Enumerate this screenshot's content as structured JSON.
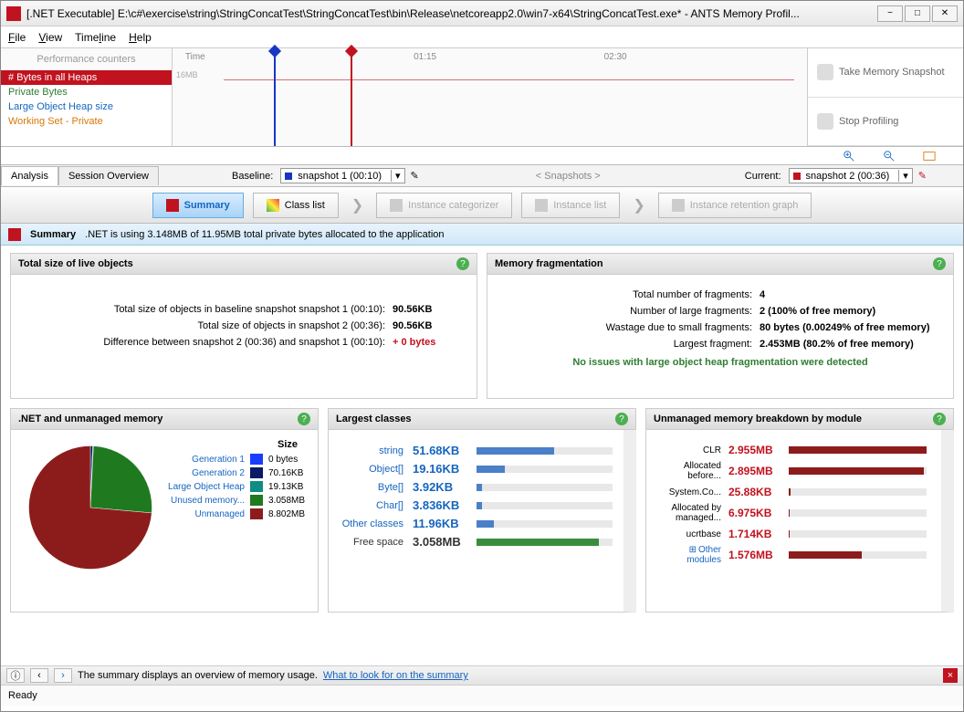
{
  "window": {
    "title": "[.NET Executable] E:\\c#\\exercise\\string\\StringConcatTest\\StringConcatTest\\bin\\Release\\netcoreapp2.0\\win7-x64\\StringConcatTest.exe* - ANTS Memory Profil..."
  },
  "menu": {
    "file": "File",
    "view": "View",
    "timeline": "Timeline",
    "help": "Help"
  },
  "perf_counters": {
    "header": "Performance counters",
    "items": [
      "# Bytes in all Heaps",
      "Private Bytes",
      "Large Object Heap size",
      "Working Set - Private"
    ]
  },
  "timeline": {
    "label_time": "Time",
    "ticks": [
      "01:15",
      "02:30"
    ],
    "tick_positions_pct": [
      38,
      68
    ],
    "ylabel": "16MB",
    "markers": [
      {
        "pos_pct": 16,
        "color": "#1636c6"
      },
      {
        "pos_pct": 28,
        "color": "#c1121f"
      }
    ]
  },
  "actions": {
    "snapshot": "Take Memory Snapshot",
    "stop": "Stop Profiling"
  },
  "snapshots": {
    "tabs": [
      "Analysis",
      "Session Overview"
    ],
    "baseline_lbl": "Baseline:",
    "baseline_val": "snapshot 1 (00:10)",
    "baseline_color": "#1636c6",
    "center": "< Snapshots >",
    "current_lbl": "Current:",
    "current_val": "snapshot 2 (00:36)",
    "current_color": "#c1121f"
  },
  "toolbar": {
    "summary": "Summary",
    "class_list": "Class list",
    "instance_cat": "Instance categorizer",
    "instance_list": "Instance list",
    "retention": "Instance retention graph"
  },
  "summary_strip": {
    "label": "Summary",
    "text": ".NET is using 3.148MB of 11.95MB total private bytes allocated to the application"
  },
  "live_objects": {
    "title": "Total size of live objects",
    "rows": [
      {
        "k": "Total size of objects in baseline snapshot snapshot 1 (00:10):",
        "v": "90.56KB"
      },
      {
        "k": "Total size of objects in snapshot 2 (00:36):",
        "v": "90.56KB"
      },
      {
        "k": "Difference between snapshot 2 (00:36) and snapshot 1 (00:10):",
        "v": "+ 0 bytes",
        "red": true
      }
    ]
  },
  "fragmentation": {
    "title": "Memory fragmentation",
    "rows": [
      {
        "k": "Total number of fragments:",
        "v": "4"
      },
      {
        "k": "Number of large fragments:",
        "v": "2 (100% of free memory)"
      },
      {
        "k": "Wastage due to small fragments:",
        "v": "80 bytes (0.00249% of free memory)"
      },
      {
        "k": "Largest fragment:",
        "v": "2.453MB (80.2% of free memory)"
      }
    ],
    "note": "No issues with large object heap fragmentation were detected"
  },
  "pie": {
    "title": ".NET and unmanaged memory",
    "size_hdr": "Size",
    "legend": [
      {
        "name": "Generation 1",
        "color": "#1a3cff",
        "val": "0 bytes",
        "pct": 0
      },
      {
        "name": "Generation 2",
        "color": "#0a1a66",
        "val": "70.16KB",
        "pct": 0.6
      },
      {
        "name": "Large Object Heap",
        "color": "#0f8c85",
        "val": "19.13KB",
        "pct": 0.2
      },
      {
        "name": "Unused memory...",
        "color": "#1f7a1f",
        "val": "3.058MB",
        "pct": 25.6
      },
      {
        "name": "Unmanaged",
        "color": "#8c1c1c",
        "val": "8.802MB",
        "pct": 73.6
      }
    ]
  },
  "largest": {
    "title": "Largest classes",
    "rows": [
      {
        "name": "string",
        "val": "51.68KB",
        "pct": 57,
        "color": "#4b7fc8"
      },
      {
        "name": "Object[]",
        "val": "19.16KB",
        "pct": 21,
        "color": "#4b7fc8"
      },
      {
        "name": "Byte[]",
        "val": "3.92KB",
        "pct": 4,
        "color": "#4b7fc8"
      },
      {
        "name": "Char[]",
        "val": "3.836KB",
        "pct": 4,
        "color": "#4b7fc8"
      },
      {
        "name": "Other classes",
        "val": "11.96KB",
        "pct": 13,
        "color": "#4b7fc8"
      },
      {
        "name": "Free space",
        "val": "3.058MB",
        "pct": 90,
        "color": "#388e3c",
        "noLink": true
      }
    ]
  },
  "unmanaged": {
    "title": "Unmanaged memory breakdown by module",
    "rows": [
      {
        "name": "CLR",
        "val": "2.955MB",
        "pct": 100
      },
      {
        "name": "Allocated before...",
        "val": "2.895MB",
        "pct": 98
      },
      {
        "name": "System.Co...",
        "val": "25.88KB",
        "pct": 1
      },
      {
        "name": "Allocated by managed...",
        "val": "6.975KB",
        "pct": 0.3
      },
      {
        "name": "ucrtbase",
        "val": "1.714KB",
        "pct": 0.1
      },
      {
        "name": "Other modules",
        "val": "1.576MB",
        "pct": 53,
        "expand": true
      }
    ]
  },
  "footer": {
    "text": "The summary displays an overview of memory usage.",
    "link": "What to look for on the summary"
  },
  "status": "Ready"
}
